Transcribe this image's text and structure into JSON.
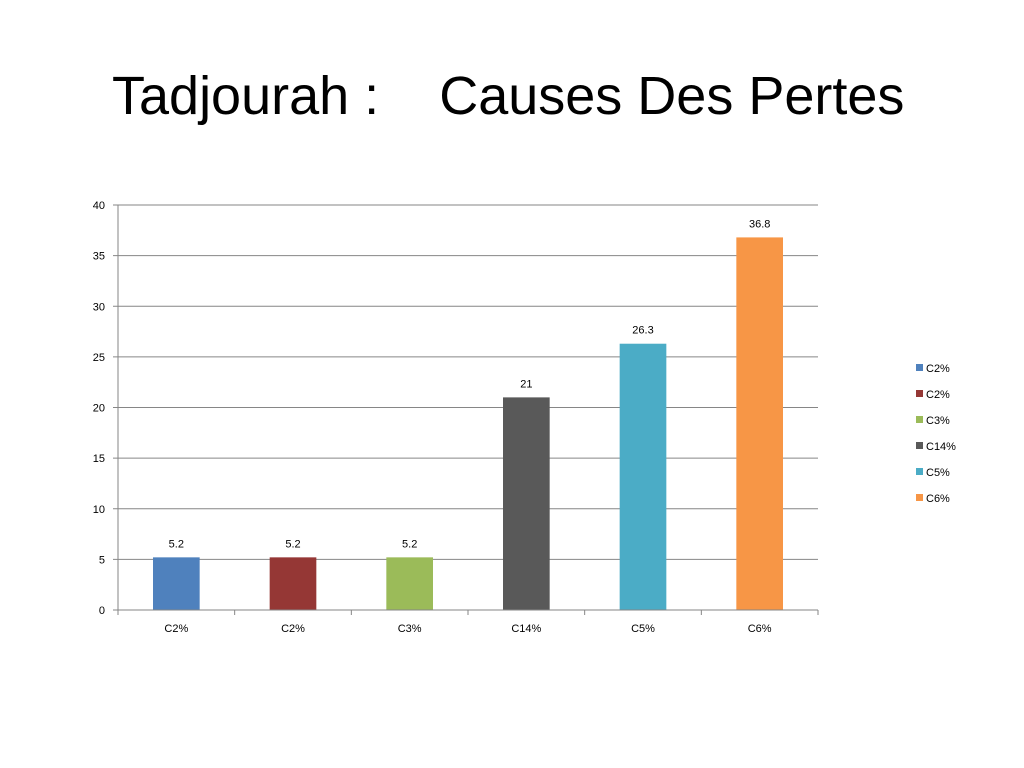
{
  "slide": {
    "title": "Tadjourah :    Causes Des Pertes"
  },
  "chart_data": {
    "type": "bar",
    "title": "",
    "xlabel": "",
    "ylabel": "",
    "ylim": [
      0,
      40
    ],
    "yticks": [
      0,
      5,
      10,
      15,
      20,
      25,
      30,
      35,
      40
    ],
    "categories": [
      "C2%",
      "C2%",
      "C3%",
      "C14%",
      "C5%",
      "C6%"
    ],
    "values": [
      5.2,
      5.2,
      5.2,
      21,
      26.3,
      36.8
    ],
    "data_labels": [
      "5.2",
      "5.2",
      "5.2",
      "21",
      "26.3",
      "36.8"
    ],
    "colors": [
      "#4F81BD",
      "#953735",
      "#9BBB59",
      "#595959",
      "#4BACC6",
      "#F79646"
    ],
    "legend": {
      "placement": "right",
      "entries": [
        "C2%",
        "C2%",
        "C3%",
        "C14%",
        "C5%",
        "C6%"
      ]
    },
    "grid": true
  }
}
